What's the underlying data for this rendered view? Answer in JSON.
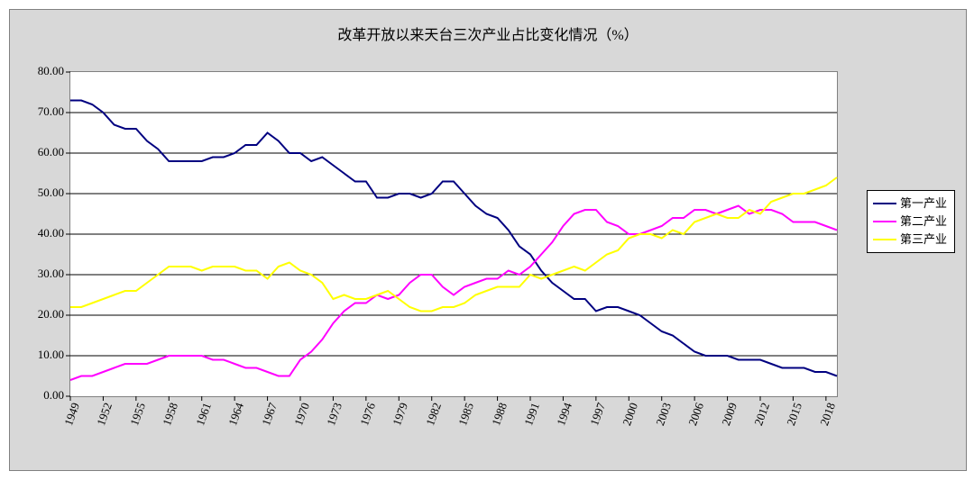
{
  "chart": {
    "type": "line",
    "title": "改革开放以来天台三次产业占比变化情况（%）",
    "title_fontsize": 16,
    "background_color": "#d8d8d8",
    "plot_background_color": "#ffffff",
    "border_color": "#808080",
    "grid_color": "#000000",
    "y": {
      "min": 0,
      "max": 80,
      "step": 10,
      "labels": [
        "0.00",
        "10.00",
        "20.00",
        "30.00",
        "40.00",
        "50.00",
        "60.00",
        "70.00",
        "80.00"
      ],
      "label_fontsize": 13
    },
    "x": {
      "years_all": [
        1949,
        1950,
        1951,
        1952,
        1953,
        1954,
        1955,
        1956,
        1957,
        1958,
        1959,
        1960,
        1961,
        1962,
        1963,
        1964,
        1965,
        1966,
        1967,
        1968,
        1969,
        1970,
        1971,
        1972,
        1973,
        1974,
        1975,
        1976,
        1977,
        1978,
        1979,
        1980,
        1981,
        1982,
        1983,
        1984,
        1985,
        1986,
        1987,
        1988,
        1989,
        1990,
        1991,
        1992,
        1993,
        1994,
        1995,
        1996,
        1997,
        1998,
        1999,
        2000,
        2001,
        2002,
        2003,
        2004,
        2005,
        2006,
        2007,
        2008,
        2009,
        2010,
        2011,
        2012,
        2013,
        2014,
        2015,
        2016,
        2017,
        2018,
        2019
      ],
      "tick_years": [
        1949,
        1952,
        1955,
        1958,
        1961,
        1964,
        1967,
        1970,
        1973,
        1976,
        1979,
        1982,
        1985,
        1988,
        1991,
        1994,
        1997,
        2000,
        2003,
        2006,
        2009,
        2012,
        2015,
        2018
      ],
      "label_fontsize": 13,
      "label_rotation_deg": -70
    },
    "series": [
      {
        "name": "第一产业",
        "color": "#000080",
        "line_width": 2,
        "values": [
          73,
          73,
          72,
          70,
          67,
          66,
          66,
          63,
          61,
          58,
          58,
          58,
          58,
          59,
          59,
          60,
          62,
          62,
          65,
          63,
          60,
          60,
          58,
          59,
          57,
          55,
          53,
          53,
          49,
          49,
          50,
          50,
          49,
          50,
          53,
          53,
          50,
          47,
          45,
          44,
          41,
          37,
          35,
          31,
          28,
          26,
          24,
          24,
          21,
          22,
          22,
          21,
          20,
          18,
          16,
          15,
          13,
          11,
          10,
          10,
          10,
          9,
          9,
          9,
          8,
          7,
          7,
          7,
          6,
          6,
          5
        ]
      },
      {
        "name": "第二产业",
        "color": "#ff00ff",
        "line_width": 2,
        "values": [
          4,
          5,
          5,
          6,
          7,
          8,
          8,
          8,
          9,
          10,
          10,
          10,
          10,
          9,
          9,
          8,
          7,
          7,
          6,
          5,
          5,
          9,
          11,
          14,
          18,
          21,
          23,
          23,
          25,
          24,
          25,
          28,
          30,
          30,
          27,
          25,
          27,
          28,
          29,
          29,
          31,
          30,
          32,
          35,
          38,
          42,
          45,
          46,
          46,
          43,
          42,
          40,
          40,
          41,
          42,
          44,
          44,
          46,
          46,
          45,
          46,
          47,
          45,
          46,
          46,
          45,
          43,
          43,
          43,
          42,
          41
        ]
      },
      {
        "name": "第三产业",
        "color": "#ffff00",
        "line_width": 2,
        "values": [
          22,
          22,
          23,
          24,
          25,
          26,
          26,
          28,
          30,
          32,
          32,
          32,
          31,
          32,
          32,
          32,
          31,
          31,
          29,
          32,
          33,
          31,
          30,
          28,
          24,
          25,
          24,
          24,
          25,
          26,
          24,
          22,
          21,
          21,
          22,
          22,
          23,
          25,
          26,
          27,
          27,
          27,
          30,
          29,
          30,
          31,
          32,
          31,
          33,
          35,
          36,
          39,
          40,
          40,
          39,
          41,
          40,
          43,
          44,
          45,
          44,
          44,
          46,
          45,
          48,
          49,
          50,
          50,
          51,
          52,
          54
        ]
      }
    ],
    "legend": {
      "border_color": "#000000",
      "background_color": "#ffffff",
      "fontsize": 13,
      "items": [
        "第一产业",
        "第二产业",
        "第三产业"
      ]
    }
  }
}
